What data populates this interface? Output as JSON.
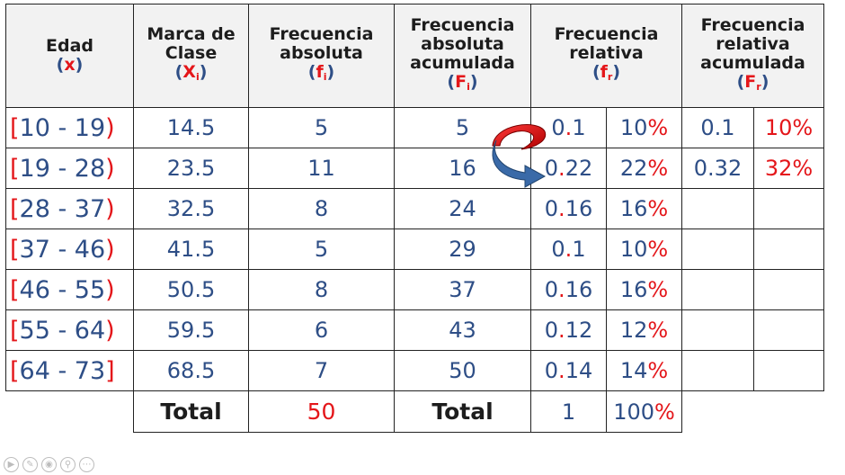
{
  "headers": {
    "edad": {
      "label": "Edad",
      "symbol": "x"
    },
    "marca": {
      "label": "Marca de Clase",
      "symbol": "X",
      "sub": "i"
    },
    "frec_abs": {
      "label": "Frecuencia absoluta",
      "symbol": "f",
      "sub": "i"
    },
    "frec_abs_acum": {
      "label": "Frecuencia absoluta acumulada",
      "symbol": "F",
      "sub": "i"
    },
    "frec_rel": {
      "label": "Frecuencia relativa",
      "symbol": "f",
      "sub": "r"
    },
    "frec_rel_acum": {
      "label": "Frecuencia relativa acumulada",
      "symbol": "F",
      "sub": "r"
    }
  },
  "rows": [
    {
      "open": "[",
      "range": "10 - 19",
      "close": ")",
      "marca": "14.5",
      "fi": "5",
      "Fi": "5",
      "fr_int": "0",
      "fr_dot": ".",
      "fr_dec": "1",
      "pct_num": "10",
      "Fr": "0.1",
      "Fr_pct_num": "10"
    },
    {
      "open": "[",
      "range": "19 - 28",
      "close": ")",
      "marca": "23.5",
      "fi": "11",
      "Fi": "16",
      "fr_int": "0",
      "fr_dot": ".",
      "fr_dec": "22",
      "pct_num": "22",
      "Fr": "0.32",
      "Fr_pct_num": "32"
    },
    {
      "open": "[",
      "range": "28 - 37",
      "close": ")",
      "marca": "32.5",
      "fi": "8",
      "Fi": "24",
      "fr_int": "0",
      "fr_dot": ".",
      "fr_dec": "16",
      "pct_num": "16",
      "Fr": "",
      "Fr_pct_num": ""
    },
    {
      "open": "[",
      "range": "37 - 46",
      "close": ")",
      "marca": "41.5",
      "fi": "5",
      "Fi": "29",
      "fr_int": "0",
      "fr_dot": ".",
      "fr_dec": "1",
      "pct_num": "10",
      "Fr": "",
      "Fr_pct_num": ""
    },
    {
      "open": "[",
      "range": "46 - 55",
      "close": ")",
      "marca": "50.5",
      "fi": "8",
      "Fi": "37",
      "fr_int": "0",
      "fr_dot": ".",
      "fr_dec": "16",
      "pct_num": "16",
      "Fr": "",
      "Fr_pct_num": ""
    },
    {
      "open": "[",
      "range": "55 - 64",
      "close": ")",
      "marca": "59.5",
      "fi": "6",
      "Fi": "43",
      "fr_int": "0",
      "fr_dot": ".",
      "fr_dec": "12",
      "pct_num": "12",
      "Fr": "",
      "Fr_pct_num": ""
    },
    {
      "open": "[",
      "range": "64 - 73",
      "close": "]",
      "marca": "68.5",
      "fi": "7",
      "Fi": "50",
      "fr_int": "0",
      "fr_dot": ".",
      "fr_dec": "14",
      "pct_num": "14",
      "Fr": "",
      "Fr_pct_num": ""
    }
  ],
  "totals": {
    "label1": "Total",
    "fi_total": "50",
    "label2": "Total",
    "fr_total": "1",
    "pct_total_num": "100"
  },
  "pct_sign": "%",
  "colors": {
    "text_blue": "#2e4e86",
    "accent_red": "#e4161a",
    "header_text": "#1d1d1d"
  },
  "icons": [
    "play-icon",
    "edit-icon",
    "zoom-icon",
    "search-icon",
    "more-icon"
  ]
}
